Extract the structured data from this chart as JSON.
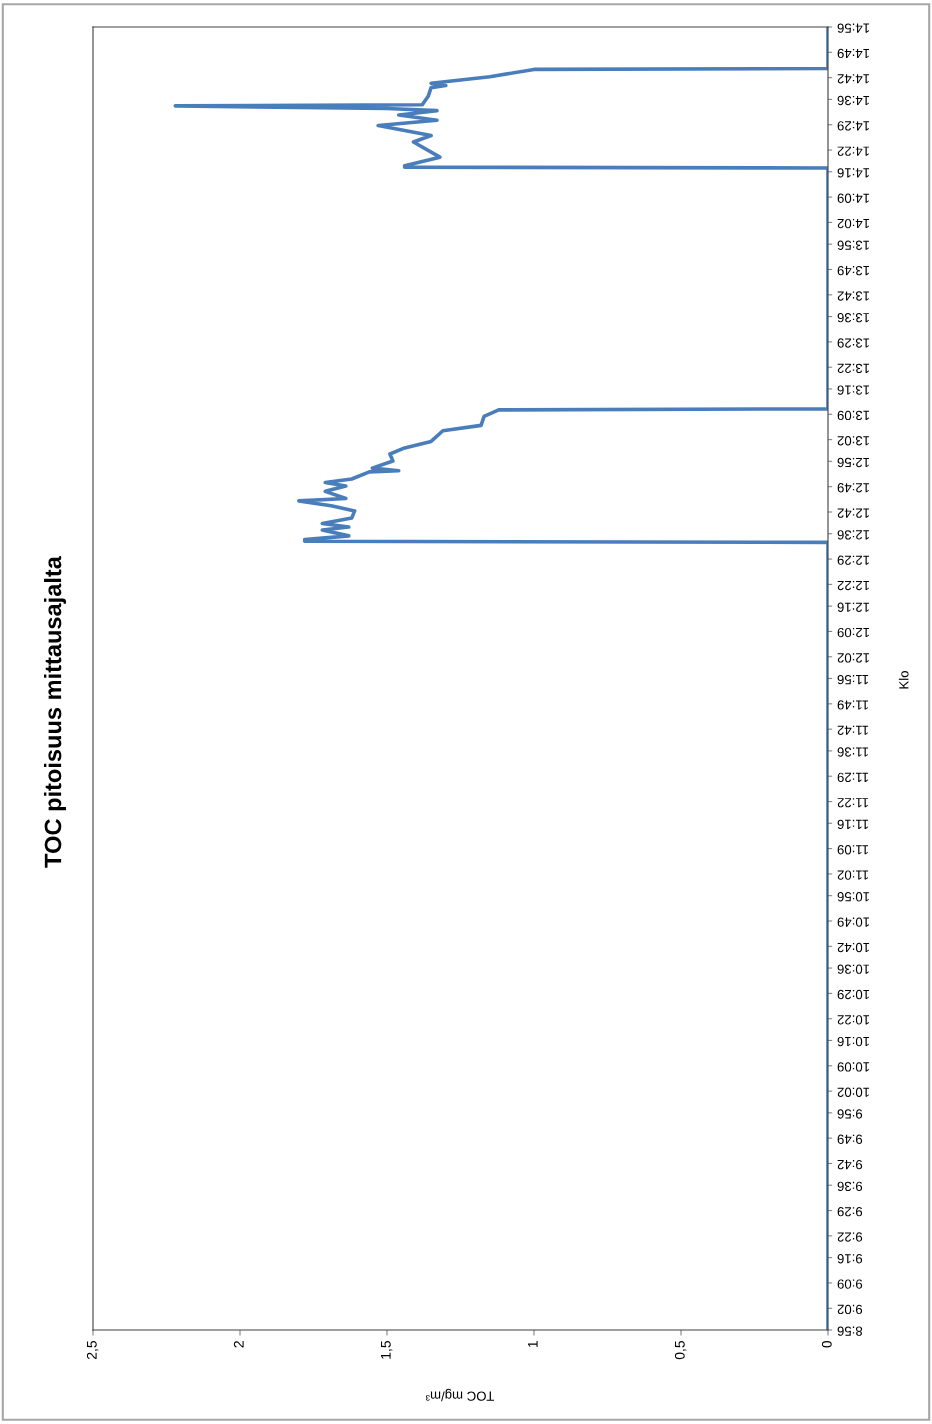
{
  "chart_data": {
    "type": "line",
    "title": "TOC pitoisuus mittausajalta",
    "ylabel": "Klo",
    "xlabel": "TOC mg/m³",
    "series": [
      {
        "color": "#4a7ebb",
        "x": [
          0,
          0,
          1.78,
          1.78,
          1.63,
          1.72,
          1.63,
          1.72,
          1.62,
          1.61,
          1.69,
          1.8,
          1.64,
          1.71,
          1.64,
          1.71,
          1.62,
          1.56,
          1.46,
          1.55,
          1.48,
          1.49,
          1.44,
          1.35,
          1.31,
          1.18,
          1.17,
          1.12,
          0,
          0,
          1.44,
          1.44,
          1.32,
          1.41,
          1.35,
          1.53,
          1.33,
          1.46,
          1.33,
          1.5,
          2.22,
          1.38,
          1.36,
          1.35,
          1.3,
          1.35,
          1.15,
          1.0,
          0,
          0
        ],
        "values": [
          8.9333,
          12.56,
          12.565,
          12.573,
          12.59,
          12.617,
          12.631,
          12.647,
          12.672,
          12.705,
          12.729,
          12.751,
          12.762,
          12.795,
          12.82,
          12.836,
          12.852,
          12.885,
          12.89,
          12.902,
          12.935,
          12.967,
          12.995,
          13.025,
          13.074,
          13.099,
          13.14,
          13.17,
          13.175,
          14.284,
          14.288,
          14.294,
          14.334,
          14.404,
          14.434,
          14.48,
          14.504,
          14.528,
          14.548,
          14.558,
          14.57,
          14.575,
          14.614,
          14.654,
          14.664,
          14.674,
          14.704,
          14.738,
          14.742,
          14.9333
        ]
      }
    ],
    "ylim": [
      8.9333,
      14.9333
    ],
    "yticks": [
      {
        "value": 8.9333,
        "label": "8:56"
      },
      {
        "value": 9.0333,
        "label": "9:02"
      },
      {
        "value": 9.15,
        "label": "9:09"
      },
      {
        "value": 9.2667,
        "label": "9:16"
      },
      {
        "value": 9.3667,
        "label": "9:22"
      },
      {
        "value": 9.4833,
        "label": "9:29"
      },
      {
        "value": 9.6,
        "label": "9:36"
      },
      {
        "value": 9.7,
        "label": "9:42"
      },
      {
        "value": 9.8167,
        "label": "9:49"
      },
      {
        "value": 9.9333,
        "label": "9:56"
      },
      {
        "value": 10.0333,
        "label": "10:02"
      },
      {
        "value": 10.15,
        "label": "10:09"
      },
      {
        "value": 10.2667,
        "label": "10:16"
      },
      {
        "value": 10.3667,
        "label": "10:22"
      },
      {
        "value": 10.4833,
        "label": "10:29"
      },
      {
        "value": 10.6,
        "label": "10:36"
      },
      {
        "value": 10.7,
        "label": "10:42"
      },
      {
        "value": 10.8167,
        "label": "10:49"
      },
      {
        "value": 10.9333,
        "label": "10:56"
      },
      {
        "value": 11.0333,
        "label": "11:02"
      },
      {
        "value": 11.15,
        "label": "11:09"
      },
      {
        "value": 11.2667,
        "label": "11:16"
      },
      {
        "value": 11.3667,
        "label": "11:22"
      },
      {
        "value": 11.4833,
        "label": "11:29"
      },
      {
        "value": 11.6,
        "label": "11:36"
      },
      {
        "value": 11.7,
        "label": "11:42"
      },
      {
        "value": 11.8167,
        "label": "11:49"
      },
      {
        "value": 11.9333,
        "label": "11:56"
      },
      {
        "value": 12.0333,
        "label": "12:02"
      },
      {
        "value": 12.15,
        "label": "12:09"
      },
      {
        "value": 12.2667,
        "label": "12:16"
      },
      {
        "value": 12.3667,
        "label": "12:22"
      },
      {
        "value": 12.4833,
        "label": "12:29"
      },
      {
        "value": 12.6,
        "label": "12:36"
      },
      {
        "value": 12.7,
        "label": "12:42"
      },
      {
        "value": 12.8167,
        "label": "12:49"
      },
      {
        "value": 12.9333,
        "label": "12:56"
      },
      {
        "value": 13.0333,
        "label": "13:02"
      },
      {
        "value": 13.15,
        "label": "13:09"
      },
      {
        "value": 13.2667,
        "label": "13:16"
      },
      {
        "value": 13.3667,
        "label": "13:22"
      },
      {
        "value": 13.4833,
        "label": "13:29"
      },
      {
        "value": 13.6,
        "label": "13:36"
      },
      {
        "value": 13.7,
        "label": "13:42"
      },
      {
        "value": 13.8167,
        "label": "13:49"
      },
      {
        "value": 13.9333,
        "label": "13:56"
      },
      {
        "value": 14.0333,
        "label": "14:02"
      },
      {
        "value": 14.15,
        "label": "14:09"
      },
      {
        "value": 14.2667,
        "label": "14:16"
      },
      {
        "value": 14.3667,
        "label": "14:22"
      },
      {
        "value": 14.4833,
        "label": "14:29"
      },
      {
        "value": 14.6,
        "label": "14:36"
      },
      {
        "value": 14.7,
        "label": "14:42"
      },
      {
        "value": 14.8167,
        "label": "14:49"
      },
      {
        "value": 14.9333,
        "label": "14:56"
      }
    ],
    "xlim": [
      2.5,
      0
    ],
    "xticks": [
      {
        "value": 2.5,
        "label": "2,5"
      },
      2,
      {
        "value": 1.5,
        "label": "1,5"
      },
      1,
      {
        "value": 0.5,
        "label": "0,5"
      },
      0
    ],
    "grid": false,
    "legend": false
  }
}
